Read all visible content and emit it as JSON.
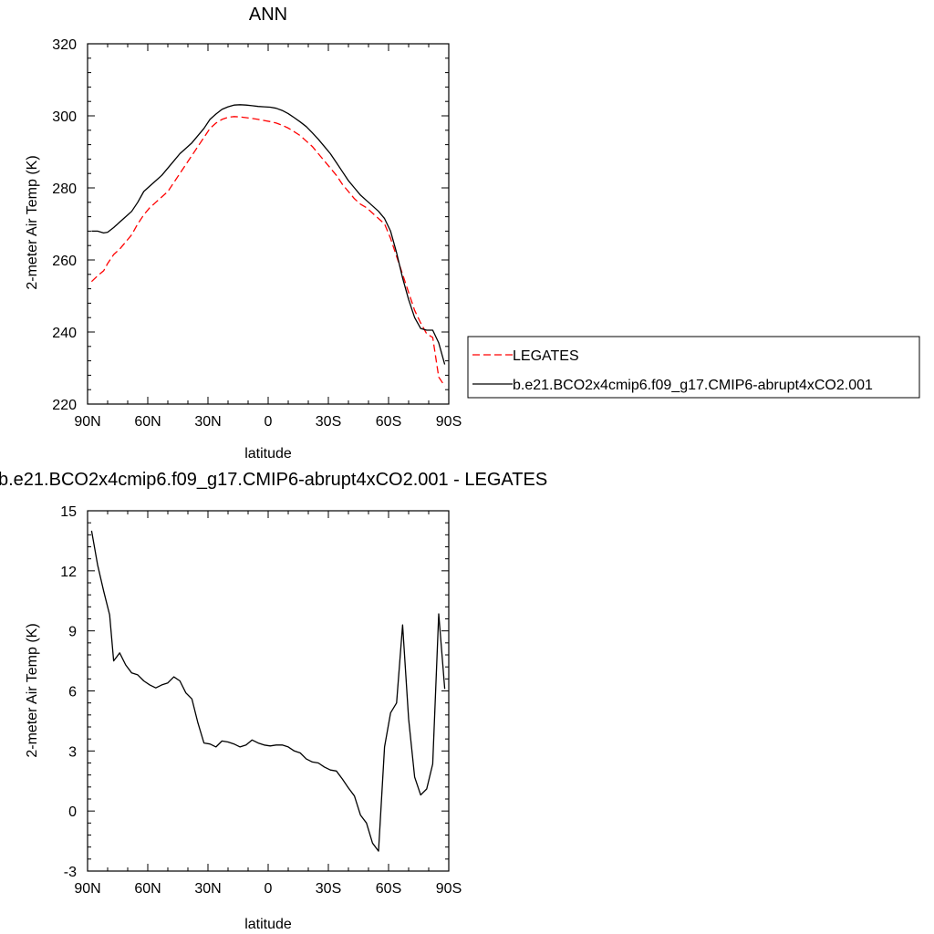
{
  "chart_data": [
    {
      "type": "line",
      "title": "ANN",
      "xlabel": "latitude",
      "ylabel": "2-meter Air Temp (K)",
      "xlim": [
        90,
        -90
      ],
      "ylim": [
        220,
        320
      ],
      "x_ticks": [
        {
          "value": 90,
          "label": "90N"
        },
        {
          "value": 60,
          "label": "60N"
        },
        {
          "value": 30,
          "label": "30N"
        },
        {
          "value": 0,
          "label": "0"
        },
        {
          "value": -30,
          "label": "30S"
        },
        {
          "value": -60,
          "label": "60S"
        },
        {
          "value": -90,
          "label": "90S"
        }
      ],
      "y_ticks": [
        {
          "value": 220,
          "label": "220"
        },
        {
          "value": 240,
          "label": "240"
        },
        {
          "value": 260,
          "label": "260"
        },
        {
          "value": 280,
          "label": "280"
        },
        {
          "value": 300,
          "label": "300"
        },
        {
          "value": 320,
          "label": "320"
        }
      ],
      "legend_position": "right",
      "series": [
        {
          "name": "LEGATES",
          "color": "#ff0000",
          "dash": "dashed",
          "x": [
            88,
            85,
            82,
            80,
            77,
            74,
            71,
            68,
            65,
            62,
            59,
            56,
            53,
            50,
            47,
            44,
            41,
            38,
            35,
            32,
            29,
            26,
            23,
            20,
            17,
            14,
            11,
            8,
            5,
            2,
            -1,
            -4,
            -7,
            -10,
            -13,
            -16,
            -19,
            -22,
            -25,
            -28,
            -31,
            -34,
            -37,
            -40,
            -43,
            -46,
            -49,
            -52,
            -55,
            -58,
            -61,
            -64,
            -67,
            -70,
            -73,
            -76,
            -79,
            -82,
            -85,
            -88
          ],
          "y": [
            254,
            255.6,
            257,
            259,
            261.5,
            263,
            265,
            267,
            270,
            272.5,
            274.5,
            276,
            277.5,
            279,
            281.5,
            284,
            286.5,
            289,
            291.5,
            294,
            296.5,
            298,
            299,
            299.6,
            299.8,
            299.7,
            299.5,
            299.3,
            299,
            298.7,
            298.4,
            298,
            297.4,
            296.6,
            295.6,
            294.5,
            293,
            291.5,
            289.5,
            287.5,
            285.5,
            283.5,
            281,
            279,
            277,
            275.5,
            274.5,
            273,
            271.5,
            270,
            266,
            261,
            256,
            251,
            246,
            242.5,
            239.5,
            238.5,
            227.5,
            225
          ]
        },
        {
          "name": "b.e21.BCO2x4cmip6.f09_g17.CMIP6-abrupt4xCO2.001",
          "color": "#000000",
          "dash": "solid",
          "x": [
            88,
            85,
            82,
            80,
            77,
            74,
            71,
            68,
            65,
            62,
            59,
            56,
            53,
            50,
            47,
            44,
            41,
            38,
            35,
            32,
            29,
            26,
            23,
            20,
            17,
            14,
            11,
            8,
            5,
            2,
            -1,
            -4,
            -7,
            -10,
            -13,
            -16,
            -19,
            -22,
            -25,
            -28,
            -31,
            -34,
            -37,
            -40,
            -43,
            -46,
            -49,
            -52,
            -55,
            -58,
            -61,
            -64,
            -67,
            -70,
            -73,
            -76,
            -79,
            -82,
            -85,
            -88
          ],
          "y": [
            268,
            268,
            267.5,
            267.7,
            269,
            270.5,
            272,
            273.5,
            276,
            279,
            280.5,
            282,
            283.5,
            285.5,
            287.5,
            289.5,
            291,
            292.5,
            294.5,
            296.5,
            299,
            300.5,
            301.8,
            302.5,
            303,
            303.1,
            303,
            302.8,
            302.6,
            302.5,
            302.4,
            302.1,
            301.5,
            300.6,
            299.5,
            298.3,
            297,
            295.3,
            293.5,
            291.5,
            289.5,
            287,
            284.5,
            282,
            280,
            278,
            276.5,
            275,
            273.5,
            271.5,
            268,
            262,
            255,
            249,
            244,
            241,
            240.5,
            240.5,
            237,
            231
          ]
        }
      ]
    },
    {
      "type": "line",
      "title": "b.e21.BCO2x4cmip6.f09_g17.CMIP6-abrupt4xCO2.001 - LEGATES",
      "xlabel": "latitude",
      "ylabel": "2-meter Air Temp (K)",
      "xlim": [
        90,
        -90
      ],
      "ylim": [
        -3,
        15
      ],
      "x_ticks": [
        {
          "value": 90,
          "label": "90N"
        },
        {
          "value": 60,
          "label": "60N"
        },
        {
          "value": 30,
          "label": "30N"
        },
        {
          "value": 0,
          "label": "0"
        },
        {
          "value": -30,
          "label": "30S"
        },
        {
          "value": -60,
          "label": "60S"
        },
        {
          "value": -90,
          "label": "90S"
        }
      ],
      "y_ticks": [
        {
          "value": -3,
          "label": "-3"
        },
        {
          "value": 0,
          "label": "0"
        },
        {
          "value": 3,
          "label": "3"
        },
        {
          "value": 6,
          "label": "6"
        },
        {
          "value": 9,
          "label": "9"
        },
        {
          "value": 12,
          "label": "12"
        },
        {
          "value": 15,
          "label": "15"
        }
      ],
      "series": [
        {
          "color": "#000000",
          "dash": "solid",
          "x": [
            88,
            85,
            82,
            79,
            77,
            74,
            71,
            68,
            65,
            62,
            59,
            56,
            53,
            50,
            47,
            44,
            41,
            38,
            35,
            32,
            29,
            26,
            23,
            20,
            17,
            14,
            11,
            8,
            5,
            2,
            -1,
            -4,
            -7,
            -10,
            -13,
            -16,
            -19,
            -22,
            -25,
            -28,
            -31,
            -34,
            -37,
            -40,
            -43,
            -46,
            -49,
            -52,
            -55,
            -58,
            -61,
            -64,
            -67,
            -70,
            -73,
            -76,
            -79,
            -82,
            -85,
            -88
          ],
          "y": [
            14,
            12.3,
            11,
            9.8,
            7.5,
            7.9,
            7.3,
            6.9,
            6.8,
            6.5,
            6.3,
            6.15,
            6.3,
            6.4,
            6.7,
            6.5,
            5.9,
            5.6,
            4.4,
            3.4,
            3.35,
            3.2,
            3.5,
            3.45,
            3.35,
            3.2,
            3.3,
            3.55,
            3.4,
            3.3,
            3.25,
            3.3,
            3.3,
            3.2,
            3.0,
            2.9,
            2.6,
            2.45,
            2.4,
            2.2,
            2.05,
            2.0,
            1.6,
            1.15,
            0.75,
            -0.2,
            -0.6,
            -1.6,
            -2.0,
            3.2,
            4.9,
            5.4,
            9.3,
            4.6,
            1.7,
            0.8,
            1.1,
            2.35,
            9.85,
            6.1
          ]
        }
      ]
    }
  ]
}
